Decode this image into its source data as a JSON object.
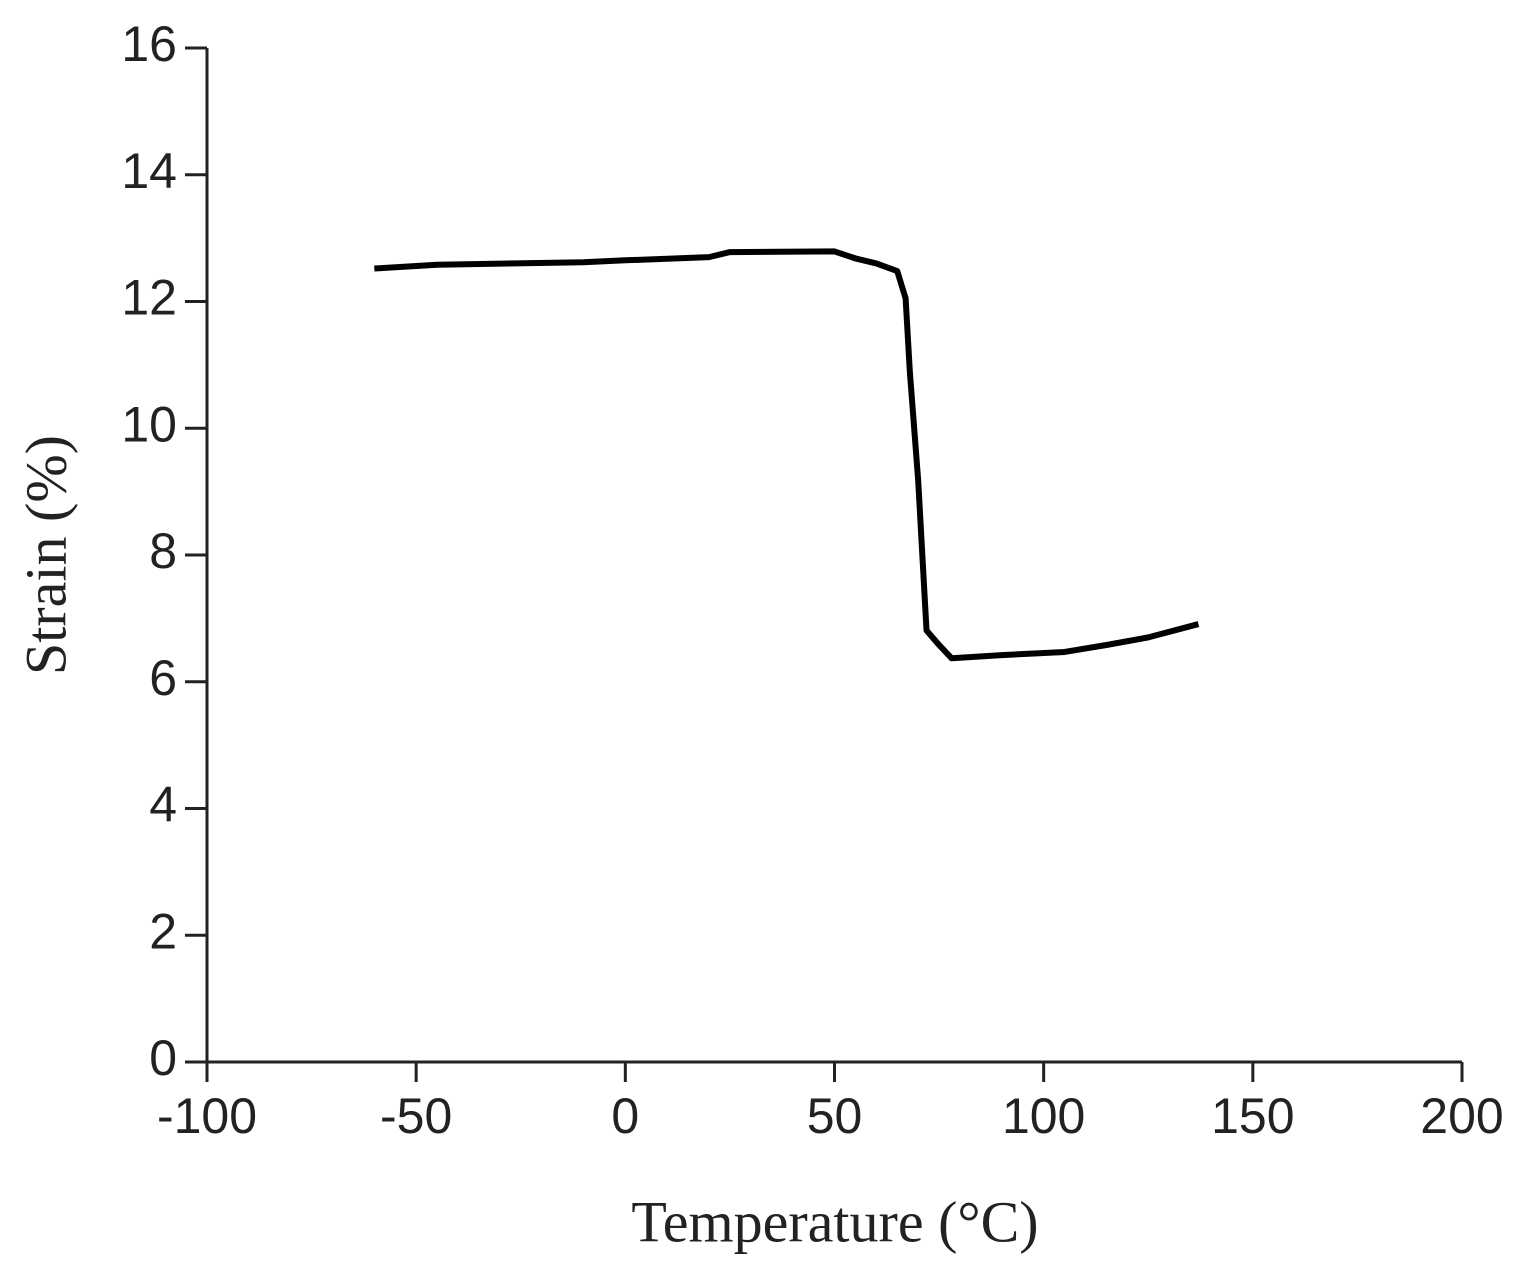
{
  "chart_data": {
    "type": "line",
    "x_label": "Temperature (°C)",
    "y_label": "Strain (%)",
    "series": [
      {
        "color": "#000000",
        "x": [
          -60,
          -45,
          -10,
          0,
          20,
          25,
          50,
          55,
          60,
          65,
          67,
          68,
          70,
          72,
          75,
          78,
          90,
          105,
          115,
          125,
          137
        ],
        "values": [
          12.52,
          12.58,
          12.62,
          12.65,
          12.7,
          12.78,
          12.79,
          12.68,
          12.6,
          12.48,
          12.05,
          10.9,
          9.18,
          6.81,
          6.58,
          6.37,
          6.42,
          6.47,
          6.58,
          6.7,
          6.91
        ]
      }
    ],
    "xlim": [
      -100,
      200
    ],
    "xticks": [
      -100,
      -50,
      0,
      50,
      100,
      150,
      200
    ],
    "ylim": [
      0,
      16
    ],
    "yticks": [
      0,
      2,
      4,
      6,
      8,
      10,
      12,
      14,
      16
    ]
  }
}
